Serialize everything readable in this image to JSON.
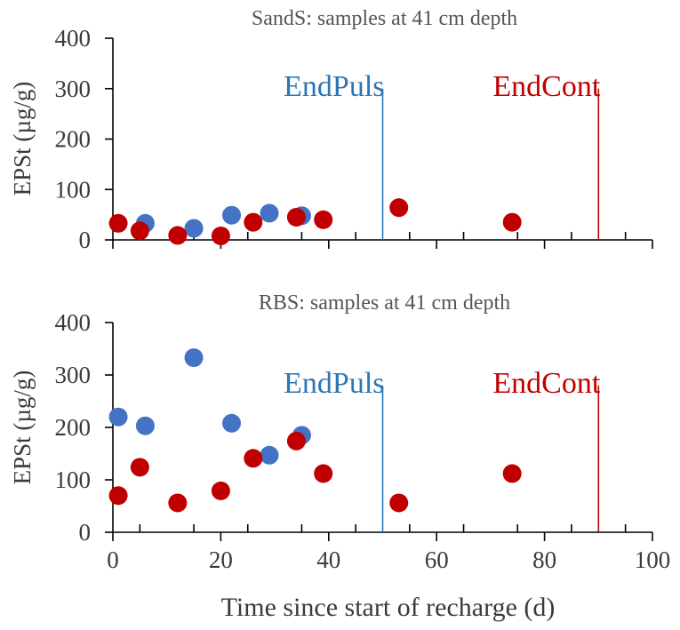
{
  "chart_data": [
    {
      "type": "scatter",
      "title": "SandS: samples at 41 cm depth",
      "xlabel": "",
      "ylabel": "EPSt (µg/g)",
      "xlim": [
        0,
        100
      ],
      "ylim": [
        0,
        400
      ],
      "xticks": [
        0,
        20,
        40,
        60,
        80,
        100
      ],
      "yticks": [
        0,
        100,
        200,
        300,
        400
      ],
      "show_xtick_labels": false,
      "series": [
        {
          "name": "blue",
          "color": "#4472C4",
          "x": [
            6,
            15,
            22,
            29,
            35
          ],
          "y": [
            33,
            23,
            49,
            53,
            48
          ]
        },
        {
          "name": "red",
          "color": "#C00000",
          "x": [
            1,
            5,
            12,
            20,
            26,
            34,
            39,
            53,
            74
          ],
          "y": [
            33,
            18,
            9,
            8,
            35,
            45,
            40,
            64,
            35
          ]
        }
      ],
      "vlines": [
        {
          "x": 50,
          "label": "EndPuls",
          "color": "#2E75B6",
          "top": 300
        },
        {
          "x": 90,
          "label": "EndCont",
          "color": "#C00000",
          "top": 300
        }
      ]
    },
    {
      "type": "scatter",
      "title": "RBS: samples at 41 cm depth",
      "xlabel": "Time since start of recharge (d)",
      "ylabel": "EPSt (µg/g)",
      "xlim": [
        0,
        100
      ],
      "ylim": [
        0,
        400
      ],
      "xticks": [
        0,
        20,
        40,
        60,
        80,
        100
      ],
      "yticks": [
        0,
        100,
        200,
        300,
        400
      ],
      "show_xtick_labels": true,
      "series": [
        {
          "name": "blue",
          "color": "#4472C4",
          "x": [
            1,
            6,
            15,
            22,
            29,
            35
          ],
          "y": [
            220,
            203,
            333,
            208,
            147,
            185
          ]
        },
        {
          "name": "red",
          "color": "#C00000",
          "x": [
            1,
            5,
            12,
            20,
            26,
            34,
            39,
            53,
            74
          ],
          "y": [
            70,
            124,
            56,
            79,
            141,
            174,
            112,
            56,
            112
          ]
        }
      ],
      "vlines": [
        {
          "x": 50,
          "label": "EndPuls",
          "color": "#2E75B6",
          "top": 280
        },
        {
          "x": 90,
          "label": "EndCont",
          "color": "#C00000",
          "top": 280
        }
      ]
    }
  ]
}
